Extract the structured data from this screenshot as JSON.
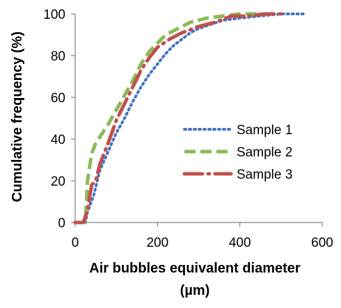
{
  "chart_data": {
    "type": "line",
    "title": "",
    "xlabel_line1": "Air bubbles equivalent diameter",
    "xlabel_line2": "(µm)",
    "ylabel": "Cumulative frequency (%)",
    "xlim": [
      0,
      600
    ],
    "ylim": [
      0,
      100
    ],
    "x_ticks": [
      0,
      200,
      400,
      600
    ],
    "y_ticks": [
      0,
      20,
      40,
      60,
      80,
      100
    ],
    "grid": false,
    "legend_position": "right-center",
    "series": [
      {
        "name": "Sample 1",
        "color": "#4472C4",
        "dash": "dotted",
        "x": [
          0,
          25,
          30,
          45,
          60,
          80,
          100,
          120,
          140,
          160,
          180,
          200,
          220,
          240,
          260,
          280,
          300,
          330,
          360,
          400,
          450,
          500,
          560
        ],
        "y": [
          0,
          0,
          5,
          13,
          25,
          34,
          43,
          50,
          58,
          65,
          71,
          76,
          81,
          85,
          88,
          91,
          93,
          95,
          97,
          98,
          99,
          100,
          100
        ]
      },
      {
        "name": "Sample 2",
        "color": "#8DB955",
        "dash": "dashed",
        "x": [
          0,
          25,
          30,
          40,
          50,
          60,
          80,
          100,
          120,
          140,
          160,
          180,
          200,
          220,
          250,
          280,
          320,
          360,
          400,
          450
        ],
        "y": [
          0,
          0,
          20,
          33,
          38,
          41,
          47,
          54,
          61,
          68,
          76,
          82,
          86,
          90,
          93,
          96,
          98,
          99,
          100,
          100
        ]
      },
      {
        "name": "Sample 3",
        "color": "#C0504D",
        "dash": "dash-dot",
        "x": [
          0,
          20,
          30,
          40,
          50,
          60,
          80,
          100,
          120,
          140,
          160,
          180,
          200,
          230,
          260,
          300,
          340,
          380,
          420,
          460,
          500
        ],
        "y": [
          0,
          0,
          6,
          18,
          20,
          28,
          38,
          49,
          57,
          65,
          73,
          79,
          84,
          88,
          91,
          94,
          96,
          99,
          99,
          100,
          100
        ]
      }
    ]
  }
}
